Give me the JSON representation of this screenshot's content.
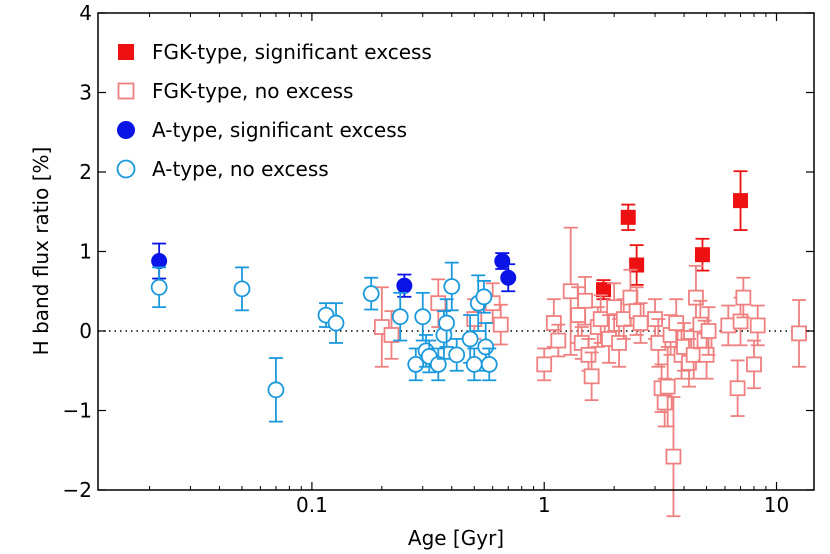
{
  "chart_data": {
    "type": "scatter",
    "title": "",
    "xlabel": "Age [Gyr]",
    "ylabel": "H band flux ratio [%]",
    "xscale": "log",
    "xlim": [
      0.012,
      14.5
    ],
    "ylim": [
      -2,
      4
    ],
    "x_ticks": [
      {
        "value": 0.1,
        "label": "0.1"
      },
      {
        "value": 1,
        "label": "1"
      },
      {
        "value": 10,
        "label": "10"
      }
    ],
    "y_ticks": [
      {
        "value": -2,
        "label": "−2"
      },
      {
        "value": -1,
        "label": "−1"
      },
      {
        "value": 0,
        "label": "0"
      },
      {
        "value": 1,
        "label": "1"
      },
      {
        "value": 2,
        "label": "2"
      },
      {
        "value": 3,
        "label": "3"
      },
      {
        "value": 4,
        "label": "4"
      }
    ],
    "reference_line": {
      "y": 0,
      "style": "dotted"
    },
    "legend_position": "top-left",
    "series": [
      {
        "name": "FGK-type, significant excess",
        "marker": "square",
        "filled": true,
        "color": "#ee1111",
        "points": [
          {
            "x": 1.8,
            "y": 0.52,
            "err": 0.12
          },
          {
            "x": 2.3,
            "y": 1.43,
            "err": 0.16
          },
          {
            "x": 2.5,
            "y": 0.83,
            "err": 0.25
          },
          {
            "x": 4.8,
            "y": 0.96,
            "err": 0.2
          },
          {
            "x": 7.0,
            "y": 1.64,
            "err": 0.37
          }
        ]
      },
      {
        "name": "FGK-type, no excess",
        "marker": "square",
        "filled": false,
        "color": "#f08080",
        "points": [
          {
            "x": 0.2,
            "y": 0.05,
            "err": 0.5
          },
          {
            "x": 0.22,
            "y": -0.05,
            "err": 0.3
          },
          {
            "x": 0.35,
            "y": 0.35,
            "err": 0.3
          },
          {
            "x": 0.5,
            "y": 0.15,
            "err": 0.25
          },
          {
            "x": 0.6,
            "y": 0.35,
            "err": 0.25
          },
          {
            "x": 0.65,
            "y": 0.08,
            "err": 0.25
          },
          {
            "x": 1.0,
            "y": -0.42,
            "err": 0.2
          },
          {
            "x": 1.1,
            "y": 0.1,
            "err": 0.3
          },
          {
            "x": 1.15,
            "y": -0.12,
            "err": 0.2
          },
          {
            "x": 1.3,
            "y": 0.5,
            "err": 0.8
          },
          {
            "x": 1.4,
            "y": 0.2,
            "err": 0.35
          },
          {
            "x": 1.45,
            "y": -0.15,
            "err": 0.2
          },
          {
            "x": 1.5,
            "y": 0.38,
            "err": 0.3
          },
          {
            "x": 1.55,
            "y": -0.3,
            "err": 0.2
          },
          {
            "x": 1.6,
            "y": -0.57,
            "err": 0.3
          },
          {
            "x": 1.7,
            "y": 0.05,
            "err": 0.25
          },
          {
            "x": 1.75,
            "y": 0.15,
            "err": 0.3
          },
          {
            "x": 1.9,
            "y": -0.1,
            "err": 0.3
          },
          {
            "x": 2.0,
            "y": 0.3,
            "err": 0.3
          },
          {
            "x": 2.1,
            "y": -0.15,
            "err": 0.3
          },
          {
            "x": 2.2,
            "y": 0.15,
            "err": 0.25
          },
          {
            "x": 2.35,
            "y": 0.42,
            "err": 0.35
          },
          {
            "x": 2.5,
            "y": 0.25,
            "err": 0.3
          },
          {
            "x": 2.6,
            "y": 0.1,
            "err": 0.25
          },
          {
            "x": 3.0,
            "y": 0.15,
            "err": 0.25
          },
          {
            "x": 3.1,
            "y": -0.15,
            "err": 0.3
          },
          {
            "x": 3.2,
            "y": -0.72,
            "err": 0.3
          },
          {
            "x": 3.3,
            "y": -0.9,
            "err": 0.3
          },
          {
            "x": 3.4,
            "y": -0.7,
            "err": 0.5
          },
          {
            "x": 3.5,
            "y": -0.05,
            "err": 0.25
          },
          {
            "x": 3.6,
            "y": -1.58,
            "err": 0.75
          },
          {
            "x": 3.7,
            "y": 0.1,
            "err": 0.3
          },
          {
            "x": 3.9,
            "y": -0.3,
            "err": 0.3
          },
          {
            "x": 4.0,
            "y": -0.2,
            "err": 0.3
          },
          {
            "x": 4.2,
            "y": -0.4,
            "err": 0.3
          },
          {
            "x": 4.4,
            "y": -0.3,
            "err": 0.3
          },
          {
            "x": 4.5,
            "y": 0.42,
            "err": 0.4
          },
          {
            "x": 4.7,
            "y": 0.08,
            "err": 0.3
          },
          {
            "x": 4.9,
            "y": -0.12,
            "err": 0.25
          },
          {
            "x": 5.0,
            "y": -0.3,
            "err": 0.3
          },
          {
            "x": 5.1,
            "y": 0.0,
            "err": 0.3
          },
          {
            "x": 6.2,
            "y": 0.07,
            "err": 0.25
          },
          {
            "x": 6.8,
            "y": -0.72,
            "err": 0.35
          },
          {
            "x": 7.0,
            "y": 0.12,
            "err": 0.3
          },
          {
            "x": 7.2,
            "y": 0.42,
            "err": 0.25
          },
          {
            "x": 8.0,
            "y": -0.42,
            "err": 0.3
          },
          {
            "x": 8.3,
            "y": 0.07,
            "err": 0.25
          },
          {
            "x": 12.5,
            "y": -0.03,
            "err": 0.42
          }
        ]
      },
      {
        "name": "A-type, significant excess",
        "marker": "circle",
        "filled": true,
        "color": "#0a14e6",
        "points": [
          {
            "x": 0.022,
            "y": 0.88,
            "err": 0.22
          },
          {
            "x": 0.25,
            "y": 0.57,
            "err": 0.14
          },
          {
            "x": 0.66,
            "y": 0.88,
            "err": 0.1
          },
          {
            "x": 0.7,
            "y": 0.67,
            "err": 0.17
          }
        ]
      },
      {
        "name": "A-type, no excess",
        "marker": "circle",
        "filled": false,
        "color": "#1a99dd",
        "points": [
          {
            "x": 0.022,
            "y": 0.55,
            "err": 0.25
          },
          {
            "x": 0.05,
            "y": 0.53,
            "err": 0.27
          },
          {
            "x": 0.07,
            "y": -0.74,
            "err": 0.4
          },
          {
            "x": 0.115,
            "y": 0.2,
            "err": 0.15
          },
          {
            "x": 0.127,
            "y": 0.1,
            "err": 0.25
          },
          {
            "x": 0.18,
            "y": 0.47,
            "err": 0.2
          },
          {
            "x": 0.24,
            "y": 0.18,
            "err": 0.3
          },
          {
            "x": 0.28,
            "y": -0.42,
            "err": 0.2
          },
          {
            "x": 0.3,
            "y": 0.18,
            "err": 0.3
          },
          {
            "x": 0.31,
            "y": -0.25,
            "err": 0.2
          },
          {
            "x": 0.32,
            "y": -0.32,
            "err": 0.2
          },
          {
            "x": 0.35,
            "y": -0.42,
            "err": 0.2
          },
          {
            "x": 0.37,
            "y": -0.05,
            "err": 0.3
          },
          {
            "x": 0.38,
            "y": 0.1,
            "err": 0.3
          },
          {
            "x": 0.4,
            "y": 0.56,
            "err": 0.3
          },
          {
            "x": 0.42,
            "y": -0.3,
            "err": 0.2
          },
          {
            "x": 0.48,
            "y": -0.1,
            "err": 0.3
          },
          {
            "x": 0.5,
            "y": -0.42,
            "err": 0.2
          },
          {
            "x": 0.52,
            "y": 0.35,
            "err": 0.35
          },
          {
            "x": 0.55,
            "y": 0.43,
            "err": 0.2
          },
          {
            "x": 0.56,
            "y": -0.2,
            "err": 0.3
          },
          {
            "x": 0.58,
            "y": -0.42,
            "err": 0.2
          }
        ]
      }
    ]
  }
}
